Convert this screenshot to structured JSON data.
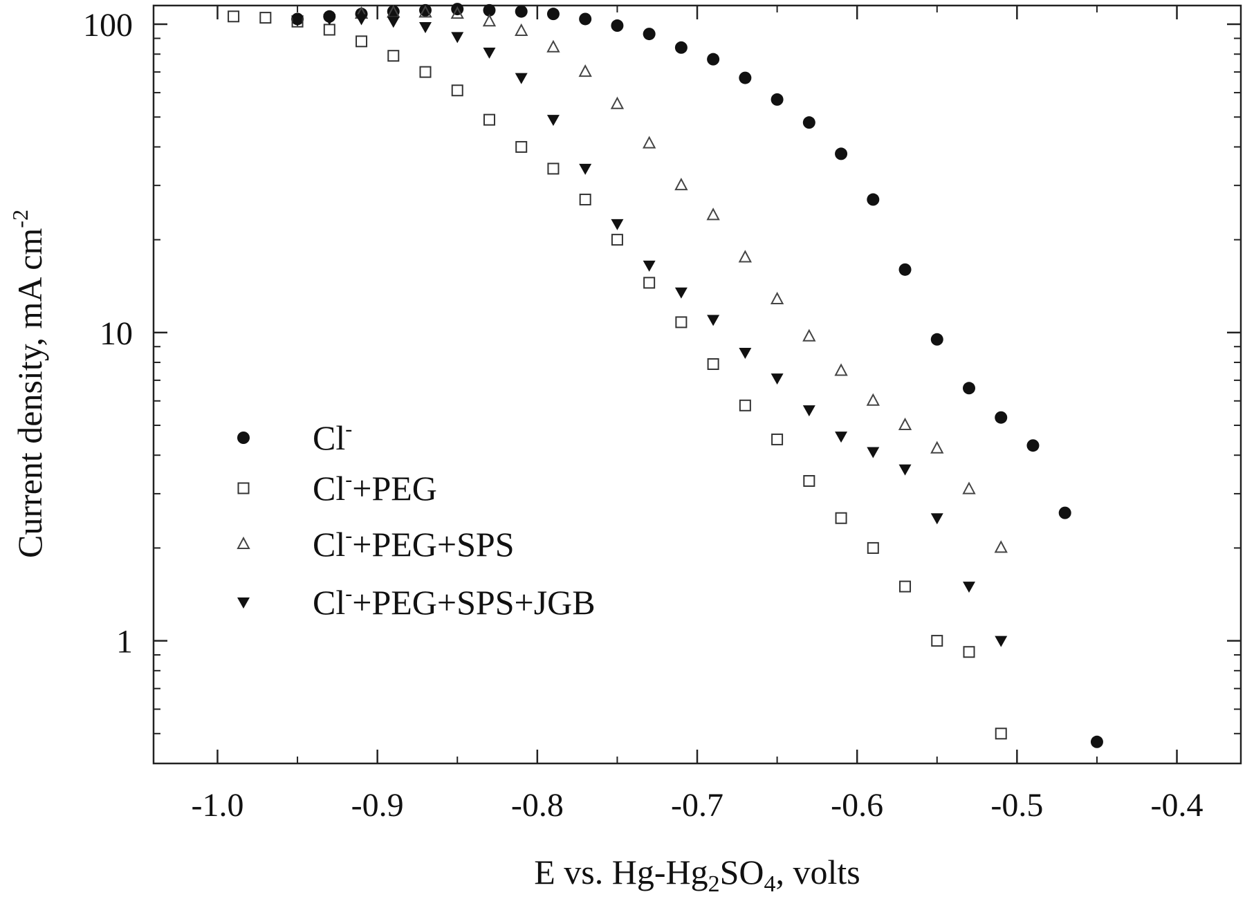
{
  "chart_data": {
    "type": "scatter",
    "title": "",
    "xlabel": {
      "main": "E vs. Hg-Hg",
      "sub1": "2",
      "mid": "SO",
      "sub2": "4",
      "tail": ", volts"
    },
    "ylabel": {
      "main": "Current density, mA cm",
      "sup": "-2"
    },
    "xlim": [
      -1.04,
      -0.36
    ],
    "ylim": [
      0.4,
      115
    ],
    "yscale": "log",
    "x_ticks": [
      -1.0,
      -0.9,
      -0.8,
      -0.7,
      -0.6,
      -0.5,
      -0.4
    ],
    "x_tick_labels": [
      "-1.0",
      "-0.9",
      "-0.8",
      "-0.7",
      "-0.6",
      "-0.5",
      "-0.4"
    ],
    "y_major_ticks": [
      1,
      10,
      100
    ],
    "y_tick_labels": [
      "1",
      "10",
      "100"
    ],
    "grid": false,
    "legend_position": "lower-left",
    "series": [
      {
        "name": "Cl⁻",
        "legend_base": "Cl",
        "legend_sup": "-",
        "legend_rest": "",
        "marker": "filled-circle",
        "points": [
          [
            -0.95,
            104
          ],
          [
            -0.93,
            106
          ],
          [
            -0.91,
            108
          ],
          [
            -0.89,
            110
          ],
          [
            -0.87,
            111
          ],
          [
            -0.85,
            112
          ],
          [
            -0.83,
            111
          ],
          [
            -0.81,
            110
          ],
          [
            -0.79,
            108
          ],
          [
            -0.77,
            104
          ],
          [
            -0.75,
            99
          ],
          [
            -0.73,
            93
          ],
          [
            -0.71,
            84
          ],
          [
            -0.69,
            77
          ],
          [
            -0.67,
            67
          ],
          [
            -0.65,
            57
          ],
          [
            -0.63,
            48
          ],
          [
            -0.61,
            38
          ],
          [
            -0.59,
            27
          ],
          [
            -0.57,
            16
          ],
          [
            -0.55,
            9.5
          ],
          [
            -0.53,
            6.6
          ],
          [
            -0.51,
            5.3
          ],
          [
            -0.49,
            4.3
          ],
          [
            -0.47,
            2.6
          ],
          [
            -0.45,
            0.47
          ]
        ]
      },
      {
        "name": "Cl⁻+PEG",
        "legend_base": "Cl",
        "legend_sup": "-",
        "legend_rest": "+PEG",
        "marker": "open-square",
        "points": [
          [
            -0.99,
            106
          ],
          [
            -0.97,
            105
          ],
          [
            -0.95,
            102
          ],
          [
            -0.93,
            96
          ],
          [
            -0.91,
            88
          ],
          [
            -0.89,
            79
          ],
          [
            -0.87,
            70
          ],
          [
            -0.85,
            61
          ],
          [
            -0.83,
            49
          ],
          [
            -0.81,
            40
          ],
          [
            -0.79,
            34
          ],
          [
            -0.77,
            27
          ],
          [
            -0.75,
            20
          ],
          [
            -0.73,
            14.5
          ],
          [
            -0.71,
            10.8
          ],
          [
            -0.69,
            7.9
          ],
          [
            -0.67,
            5.8
          ],
          [
            -0.65,
            4.5
          ],
          [
            -0.63,
            3.3
          ],
          [
            -0.61,
            2.5
          ],
          [
            -0.59,
            2.0
          ],
          [
            -0.57,
            1.5
          ],
          [
            -0.55,
            1.0
          ],
          [
            -0.53,
            0.92
          ],
          [
            -0.51,
            0.5
          ]
        ]
      },
      {
        "name": "Cl⁻+PEG+SPS",
        "legend_base": "Cl",
        "legend_sup": "-",
        "legend_rest": "+PEG+SPS",
        "marker": "open-triangle",
        "points": [
          [
            -0.91,
            108
          ],
          [
            -0.89,
            109
          ],
          [
            -0.87,
            109
          ],
          [
            -0.85,
            108
          ],
          [
            -0.83,
            102
          ],
          [
            -0.81,
            95
          ],
          [
            -0.79,
            84
          ],
          [
            -0.77,
            70
          ],
          [
            -0.75,
            55
          ],
          [
            -0.73,
            41
          ],
          [
            -0.71,
            30
          ],
          [
            -0.69,
            24
          ],
          [
            -0.67,
            17.5
          ],
          [
            -0.65,
            12.8
          ],
          [
            -0.63,
            9.7
          ],
          [
            -0.61,
            7.5
          ],
          [
            -0.59,
            6.0
          ],
          [
            -0.57,
            5.0
          ],
          [
            -0.55,
            4.2
          ],
          [
            -0.53,
            3.1
          ],
          [
            -0.51,
            2.0
          ]
        ]
      },
      {
        "name": "Cl⁻+PEG+SPS+JGB",
        "legend_base": "Cl",
        "legend_sup": "-",
        "legend_rest": "+PEG+SPS+JGB",
        "marker": "filled-down-triangle",
        "points": [
          [
            -0.95,
            103
          ],
          [
            -0.93,
            104
          ],
          [
            -0.91,
            104
          ],
          [
            -0.89,
            102
          ],
          [
            -0.87,
            98
          ],
          [
            -0.85,
            91
          ],
          [
            -0.83,
            81
          ],
          [
            -0.81,
            67
          ],
          [
            -0.79,
            49
          ],
          [
            -0.77,
            34
          ],
          [
            -0.75,
            22.5
          ],
          [
            -0.73,
            16.5
          ],
          [
            -0.71,
            13.5
          ],
          [
            -0.69,
            11.0
          ],
          [
            -0.67,
            8.6
          ],
          [
            -0.65,
            7.1
          ],
          [
            -0.63,
            5.6
          ],
          [
            -0.61,
            4.6
          ],
          [
            -0.59,
            4.1
          ],
          [
            -0.57,
            3.6
          ],
          [
            -0.55,
            2.5
          ],
          [
            -0.53,
            1.5
          ],
          [
            -0.51,
            1.0
          ]
        ]
      }
    ]
  }
}
